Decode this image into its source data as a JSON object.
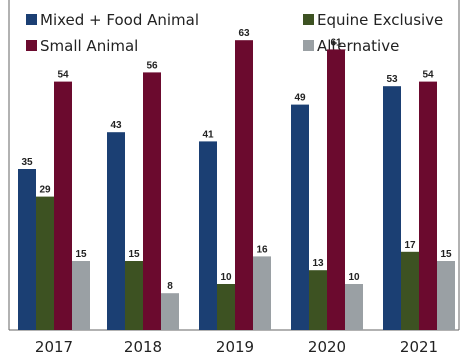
{
  "chart_data": {
    "type": "bar",
    "categories": [
      "2017",
      "2018",
      "2019",
      "2020",
      "2021"
    ],
    "series": [
      {
        "name": "Mixed + Food Animal",
        "values": [
          35,
          43,
          41,
          49,
          53
        ]
      },
      {
        "name": "Equine Exclusive",
        "values": [
          29,
          15,
          10,
          13,
          17
        ]
      },
      {
        "name": "Small Animal",
        "values": [
          54,
          56,
          63,
          61,
          54
        ]
      },
      {
        "name": "Alternative",
        "values": [
          15,
          8,
          16,
          10,
          15
        ]
      }
    ],
    "colors": [
      "#1b3f73",
      "#3d5222",
      "#6b0a2e",
      "#9aa0a4"
    ],
    "legend_order": [
      0,
      1,
      2,
      3
    ],
    "legend_position": "top",
    "ylim": [
      0,
      70
    ],
    "grid": false,
    "data_labels": true
  }
}
